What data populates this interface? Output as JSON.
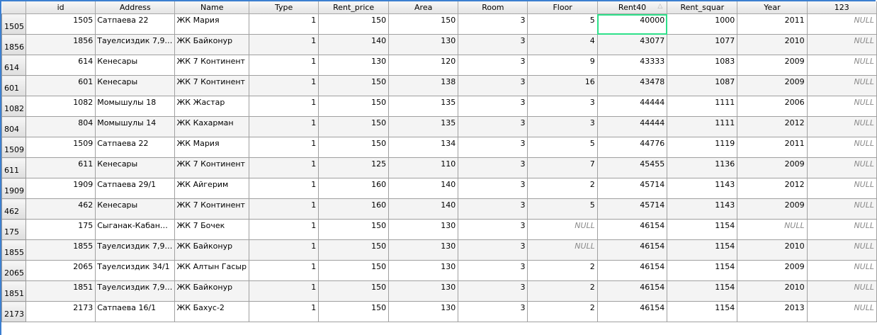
{
  "columns": [
    "id",
    "Address",
    "Name",
    "Type",
    "Rent_price",
    "Area",
    "Room",
    "Floor",
    "Rent40",
    "Rent_squar",
    "Year",
    "123"
  ],
  "sorted_column": "Rent40",
  "sort_icon": "sort-ascending-icon",
  "selection_color": "#2ee08a",
  "rows": [
    {
      "h": "1505",
      "c": [
        "1505",
        "Сатпаева 22",
        "ЖК Мария",
        "1",
        "150",
        "150",
        "3",
        "5",
        "40000",
        "1000",
        "2011",
        "NULL"
      ]
    },
    {
      "h": "1856",
      "c": [
        "1856",
        "Тауелсиздик 7,9…",
        "ЖК Байконур",
        "1",
        "140",
        "130",
        "3",
        "4",
        "43077",
        "1077",
        "2010",
        "NULL"
      ]
    },
    {
      "h": "614",
      "c": [
        "614",
        "Кенесары",
        "ЖК 7 Континент",
        "1",
        "130",
        "120",
        "3",
        "9",
        "43333",
        "1083",
        "2009",
        "NULL"
      ]
    },
    {
      "h": "601",
      "c": [
        "601",
        "Кенесары",
        "ЖК 7 Континент",
        "1",
        "150",
        "138",
        "3",
        "16",
        "43478",
        "1087",
        "2009",
        "NULL"
      ]
    },
    {
      "h": "1082",
      "c": [
        "1082",
        "Момышулы 18",
        "ЖК Жастар",
        "1",
        "150",
        "135",
        "3",
        "3",
        "44444",
        "1111",
        "2006",
        "NULL"
      ]
    },
    {
      "h": "804",
      "c": [
        "804",
        "Момышулы 14",
        "ЖК Кахарман",
        "1",
        "150",
        "135",
        "3",
        "3",
        "44444",
        "1111",
        "2012",
        "NULL"
      ]
    },
    {
      "h": "1509",
      "c": [
        "1509",
        "Сатпаева 22",
        "ЖК Мария",
        "1",
        "150",
        "134",
        "3",
        "5",
        "44776",
        "1119",
        "2011",
        "NULL"
      ]
    },
    {
      "h": "611",
      "c": [
        "611",
        "Кенесары",
        "ЖК 7 Континент",
        "1",
        "125",
        "110",
        "3",
        "7",
        "45455",
        "1136",
        "2009",
        "NULL"
      ]
    },
    {
      "h": "1909",
      "c": [
        "1909",
        "Сатпаева 29/1",
        "ЖК Айгерим",
        "1",
        "160",
        "140",
        "3",
        "2",
        "45714",
        "1143",
        "2012",
        "NULL"
      ]
    },
    {
      "h": "462",
      "c": [
        "462",
        "Кенесары",
        "ЖК 7 Континент",
        "1",
        "160",
        "140",
        "3",
        "5",
        "45714",
        "1143",
        "2009",
        "NULL"
      ]
    },
    {
      "h": "175",
      "c": [
        "175",
        "Сыганак-Кабан…",
        "ЖК 7 Бочек",
        "1",
        "150",
        "130",
        "3",
        "NULL",
        "46154",
        "1154",
        "NULL",
        "NULL"
      ]
    },
    {
      "h": "1855",
      "c": [
        "1855",
        "Тауелсиздик 7,9…",
        "ЖК Байконур",
        "1",
        "150",
        "130",
        "3",
        "NULL",
        "46154",
        "1154",
        "2010",
        "NULL"
      ]
    },
    {
      "h": "2065",
      "c": [
        "2065",
        "Тауелсиздик 34/1",
        "ЖК Алтын Гасыр",
        "1",
        "150",
        "130",
        "3",
        "2",
        "46154",
        "1154",
        "2009",
        "NULL"
      ]
    },
    {
      "h": "1851",
      "c": [
        "1851",
        "Тауелсиздик 7,9…",
        "ЖК Байконур",
        "1",
        "150",
        "130",
        "3",
        "2",
        "46154",
        "1154",
        "2010",
        "NULL"
      ]
    },
    {
      "h": "2173",
      "c": [
        "2173",
        "Сатпаева 16/1",
        "ЖК Бахус-2",
        "1",
        "150",
        "130",
        "3",
        "2",
        "46154",
        "1154",
        "2013",
        "NULL"
      ]
    }
  ]
}
